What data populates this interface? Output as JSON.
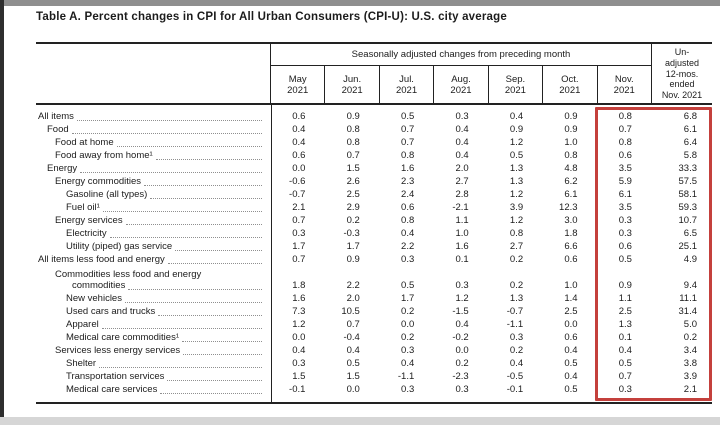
{
  "title": "Table A. Percent changes in CPI for All Urban Consumers (CPI-U): U.S. city average",
  "table": {
    "span_header": "Seasonally adjusted changes from preceding month",
    "unadjusted_header_lines": [
      "Un-",
      "adjusted",
      "12-mos.",
      "ended",
      "Nov. 2021"
    ],
    "month_columns": [
      {
        "line1": "May",
        "line2": "2021"
      },
      {
        "line1": "Jun.",
        "line2": "2021"
      },
      {
        "line1": "Jul.",
        "line2": "2021"
      },
      {
        "line1": "Aug.",
        "line2": "2021"
      },
      {
        "line1": "Sep.",
        "line2": "2021"
      },
      {
        "line1": "Oct.",
        "line2": "2021"
      },
      {
        "line1": "Nov.",
        "line2": "2021"
      }
    ],
    "rows": [
      {
        "label": "All items",
        "indent": 0,
        "values": [
          "0.6",
          "0.9",
          "0.5",
          "0.3",
          "0.4",
          "0.9",
          "0.8"
        ],
        "unadjusted": "6.8"
      },
      {
        "label": "Food",
        "indent": 1,
        "values": [
          "0.4",
          "0.8",
          "0.7",
          "0.4",
          "0.9",
          "0.9",
          "0.7"
        ],
        "unadjusted": "6.1"
      },
      {
        "label": "Food at home",
        "indent": 2,
        "values": [
          "0.4",
          "0.8",
          "0.7",
          "0.4",
          "1.2",
          "1.0",
          "0.8"
        ],
        "unadjusted": "6.4"
      },
      {
        "label": "Food away from home¹",
        "indent": 2,
        "values": [
          "0.6",
          "0.7",
          "0.8",
          "0.4",
          "0.5",
          "0.8",
          "0.6"
        ],
        "unadjusted": "5.8"
      },
      {
        "label": "Energy",
        "indent": 1,
        "values": [
          "0.0",
          "1.5",
          "1.6",
          "2.0",
          "1.3",
          "4.8",
          "3.5"
        ],
        "unadjusted": "33.3"
      },
      {
        "label": "Energy commodities",
        "indent": 2,
        "values": [
          "-0.6",
          "2.6",
          "2.3",
          "2.7",
          "1.3",
          "6.2",
          "5.9"
        ],
        "unadjusted": "57.5"
      },
      {
        "label": "Gasoline (all types)",
        "indent": 3,
        "values": [
          "-0.7",
          "2.5",
          "2.4",
          "2.8",
          "1.2",
          "6.1",
          "6.1"
        ],
        "unadjusted": "58.1"
      },
      {
        "label": "Fuel oil¹",
        "indent": 3,
        "values": [
          "2.1",
          "2.9",
          "0.6",
          "-2.1",
          "3.9",
          "12.3",
          "3.5"
        ],
        "unadjusted": "59.3"
      },
      {
        "label": "Energy services",
        "indent": 2,
        "values": [
          "0.7",
          "0.2",
          "0.8",
          "1.1",
          "1.2",
          "3.0",
          "0.3"
        ],
        "unadjusted": "10.7"
      },
      {
        "label": "Electricity",
        "indent": 3,
        "values": [
          "0.3",
          "-0.3",
          "0.4",
          "1.0",
          "0.8",
          "1.8",
          "0.3"
        ],
        "unadjusted": "6.5"
      },
      {
        "label": "Utility (piped) gas service",
        "indent": 3,
        "values": [
          "1.7",
          "1.7",
          "2.2",
          "1.6",
          "2.7",
          "6.6",
          "0.6"
        ],
        "unadjusted": "25.1"
      },
      {
        "label": "All items less food and energy",
        "indent": 0,
        "values": [
          "0.7",
          "0.9",
          "0.3",
          "0.1",
          "0.2",
          "0.6",
          "0.5"
        ],
        "unadjusted": "4.9"
      },
      {
        "label": "Commodities less food and energy",
        "label_line2": "commodities",
        "indent": 2,
        "values": [
          "1.8",
          "2.2",
          "0.5",
          "0.3",
          "0.2",
          "1.0",
          "0.9"
        ],
        "unadjusted": "9.4"
      },
      {
        "label": "New vehicles",
        "indent": 3,
        "values": [
          "1.6",
          "2.0",
          "1.7",
          "1.2",
          "1.3",
          "1.4",
          "1.1"
        ],
        "unadjusted": "11.1"
      },
      {
        "label": "Used cars and trucks",
        "indent": 3,
        "values": [
          "7.3",
          "10.5",
          "0.2",
          "-1.5",
          "-0.7",
          "2.5",
          "2.5"
        ],
        "unadjusted": "31.4"
      },
      {
        "label": "Apparel",
        "indent": 3,
        "values": [
          "1.2",
          "0.7",
          "0.0",
          "0.4",
          "-1.1",
          "0.0",
          "1.3"
        ],
        "unadjusted": "5.0"
      },
      {
        "label": "Medical care commodities¹",
        "indent": 3,
        "values": [
          "0.0",
          "-0.4",
          "0.2",
          "-0.2",
          "0.3",
          "0.6",
          "0.1"
        ],
        "unadjusted": "0.2"
      },
      {
        "label": "Services less energy services",
        "indent": 2,
        "values": [
          "0.4",
          "0.4",
          "0.3",
          "0.0",
          "0.2",
          "0.4",
          "0.4"
        ],
        "unadjusted": "3.4"
      },
      {
        "label": "Shelter",
        "indent": 3,
        "values": [
          "0.3",
          "0.5",
          "0.4",
          "0.2",
          "0.4",
          "0.5",
          "0.5"
        ],
        "unadjusted": "3.8"
      },
      {
        "label": "Transportation services",
        "indent": 3,
        "values": [
          "1.5",
          "1.5",
          "-1.1",
          "-2.3",
          "-0.5",
          "0.4",
          "0.7"
        ],
        "unadjusted": "3.9"
      },
      {
        "label": "Medical care services",
        "indent": 3,
        "values": [
          "-0.1",
          "0.0",
          "0.3",
          "0.3",
          "-0.1",
          "0.5",
          "0.3"
        ],
        "unadjusted": "2.1"
      }
    ]
  },
  "highlight": {
    "color": "#c4403c",
    "columns_highlighted": "Nov. 2021 and Un-adjusted 12-mos. ended Nov. 2021"
  }
}
